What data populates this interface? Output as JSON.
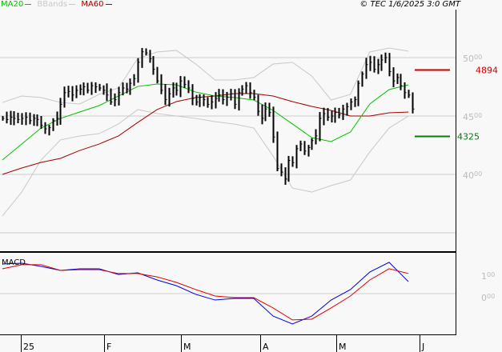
{
  "legend": {
    "items": [
      {
        "label": "MA20",
        "color": "#00c000"
      },
      {
        "label": "BBands",
        "color": "#c8c8c8"
      },
      {
        "label": "MA60",
        "color": "#a00000"
      }
    ]
  },
  "copyright": "© TEC 1/6/2025 3:0 GMT",
  "chart_data": [
    {
      "type": "ohlc",
      "panel": "price",
      "y_tick_labels": [
        "5000",
        "4500",
        "4000"
      ],
      "y_ticks": [
        5000,
        4500,
        4000,
        3500
      ],
      "x_tick_labels": [
        "25",
        "F",
        "M",
        "A",
        "M",
        "J"
      ],
      "grid": true,
      "closes": [
        4480,
        4470,
        4490,
        4480,
        4470,
        4480,
        4490,
        4460,
        4480,
        4470,
        4420,
        4390,
        4400,
        4460,
        4480,
        4600,
        4700,
        4710,
        4680,
        4720,
        4730,
        4750,
        4720,
        4760,
        4750,
        4740,
        4720,
        4680,
        4620,
        4640,
        4700,
        4740,
        4730,
        4780,
        4820,
        4960,
        5050,
        5040,
        4990,
        4900,
        4800,
        4720,
        4640,
        4690,
        4740,
        4720,
        4800,
        4770,
        4740,
        4650,
        4620,
        4660,
        4640,
        4600,
        4620,
        4650,
        4680,
        4640,
        4660,
        4690,
        4600,
        4700,
        4730,
        4760,
        4700,
        4660,
        4540,
        4480,
        4560,
        4530,
        4320,
        4050,
        4020,
        3960,
        4120,
        4100,
        4220,
        4260,
        4200,
        4230,
        4290,
        4330,
        4480,
        4520,
        4490,
        4500,
        4530,
        4510,
        4560,
        4580,
        4620,
        4640,
        4780,
        4860,
        4940,
        4960,
        4900,
        4940,
        4980,
        5000,
        4880,
        4800,
        4830,
        4760,
        4700,
        4680,
        4560
      ],
      "overlays_every_5_bars": {
        "MA20": [
          4123,
          4260,
          4397,
          4479,
          4534,
          4589,
          4671,
          4753,
          4774,
          4767,
          4705,
          4671,
          4658,
          4637,
          4548,
          4432,
          4315,
          4281,
          4363,
          4603,
          4726,
          4767
        ],
        "MA60": [
          4000,
          4055,
          4103,
          4137,
          4205,
          4260,
          4329,
          4445,
          4555,
          4623,
          4658,
          4671,
          4692,
          4692,
          4671,
          4623,
          4582,
          4548,
          4500,
          4500,
          4527,
          4534
        ],
        "BB_upper": [
          4616,
          4671,
          4658,
          4616,
          4603,
          4685,
          4740,
          4993,
          5048,
          5062,
          4945,
          4808,
          4808,
          4829,
          4945,
          4959,
          4842,
          4637,
          4685,
          5048,
          5082,
          5055
        ],
        "BB_lower": [
          3644,
          3849,
          4123,
          4295,
          4329,
          4349,
          4431,
          4555,
          4521,
          4500,
          4479,
          4452,
          4431,
          4397,
          4157,
          3883,
          3849,
          3904,
          3952,
          4192,
          4397,
          4500
        ]
      },
      "levels": [
        {
          "value": 4894,
          "label": "4894",
          "color": "#cc0000"
        },
        {
          "value": 4325,
          "label": "4325",
          "color": "#008000"
        }
      ]
    },
    {
      "type": "line",
      "panel": "MACD",
      "title": "MACD",
      "y_tick_labels": [
        "100",
        "000"
      ],
      "series": [
        {
          "color": "#0000dd",
          "values": [
            161,
            165,
            148,
            126,
            135,
            135,
            104,
            113,
            74,
            43,
            -4,
            -35,
            -26,
            -26,
            -122,
            -165,
            -122,
            -35,
            22,
            117,
            170,
            65
          ]
        },
        {
          "color": "#dd0000",
          "values": [
            135,
            157,
            157,
            126,
            130,
            130,
            109,
            109,
            91,
            61,
            22,
            -13,
            -22,
            -22,
            -78,
            -143,
            -139,
            -78,
            -13,
            74,
            135,
            109
          ]
        }
      ]
    }
  ]
}
